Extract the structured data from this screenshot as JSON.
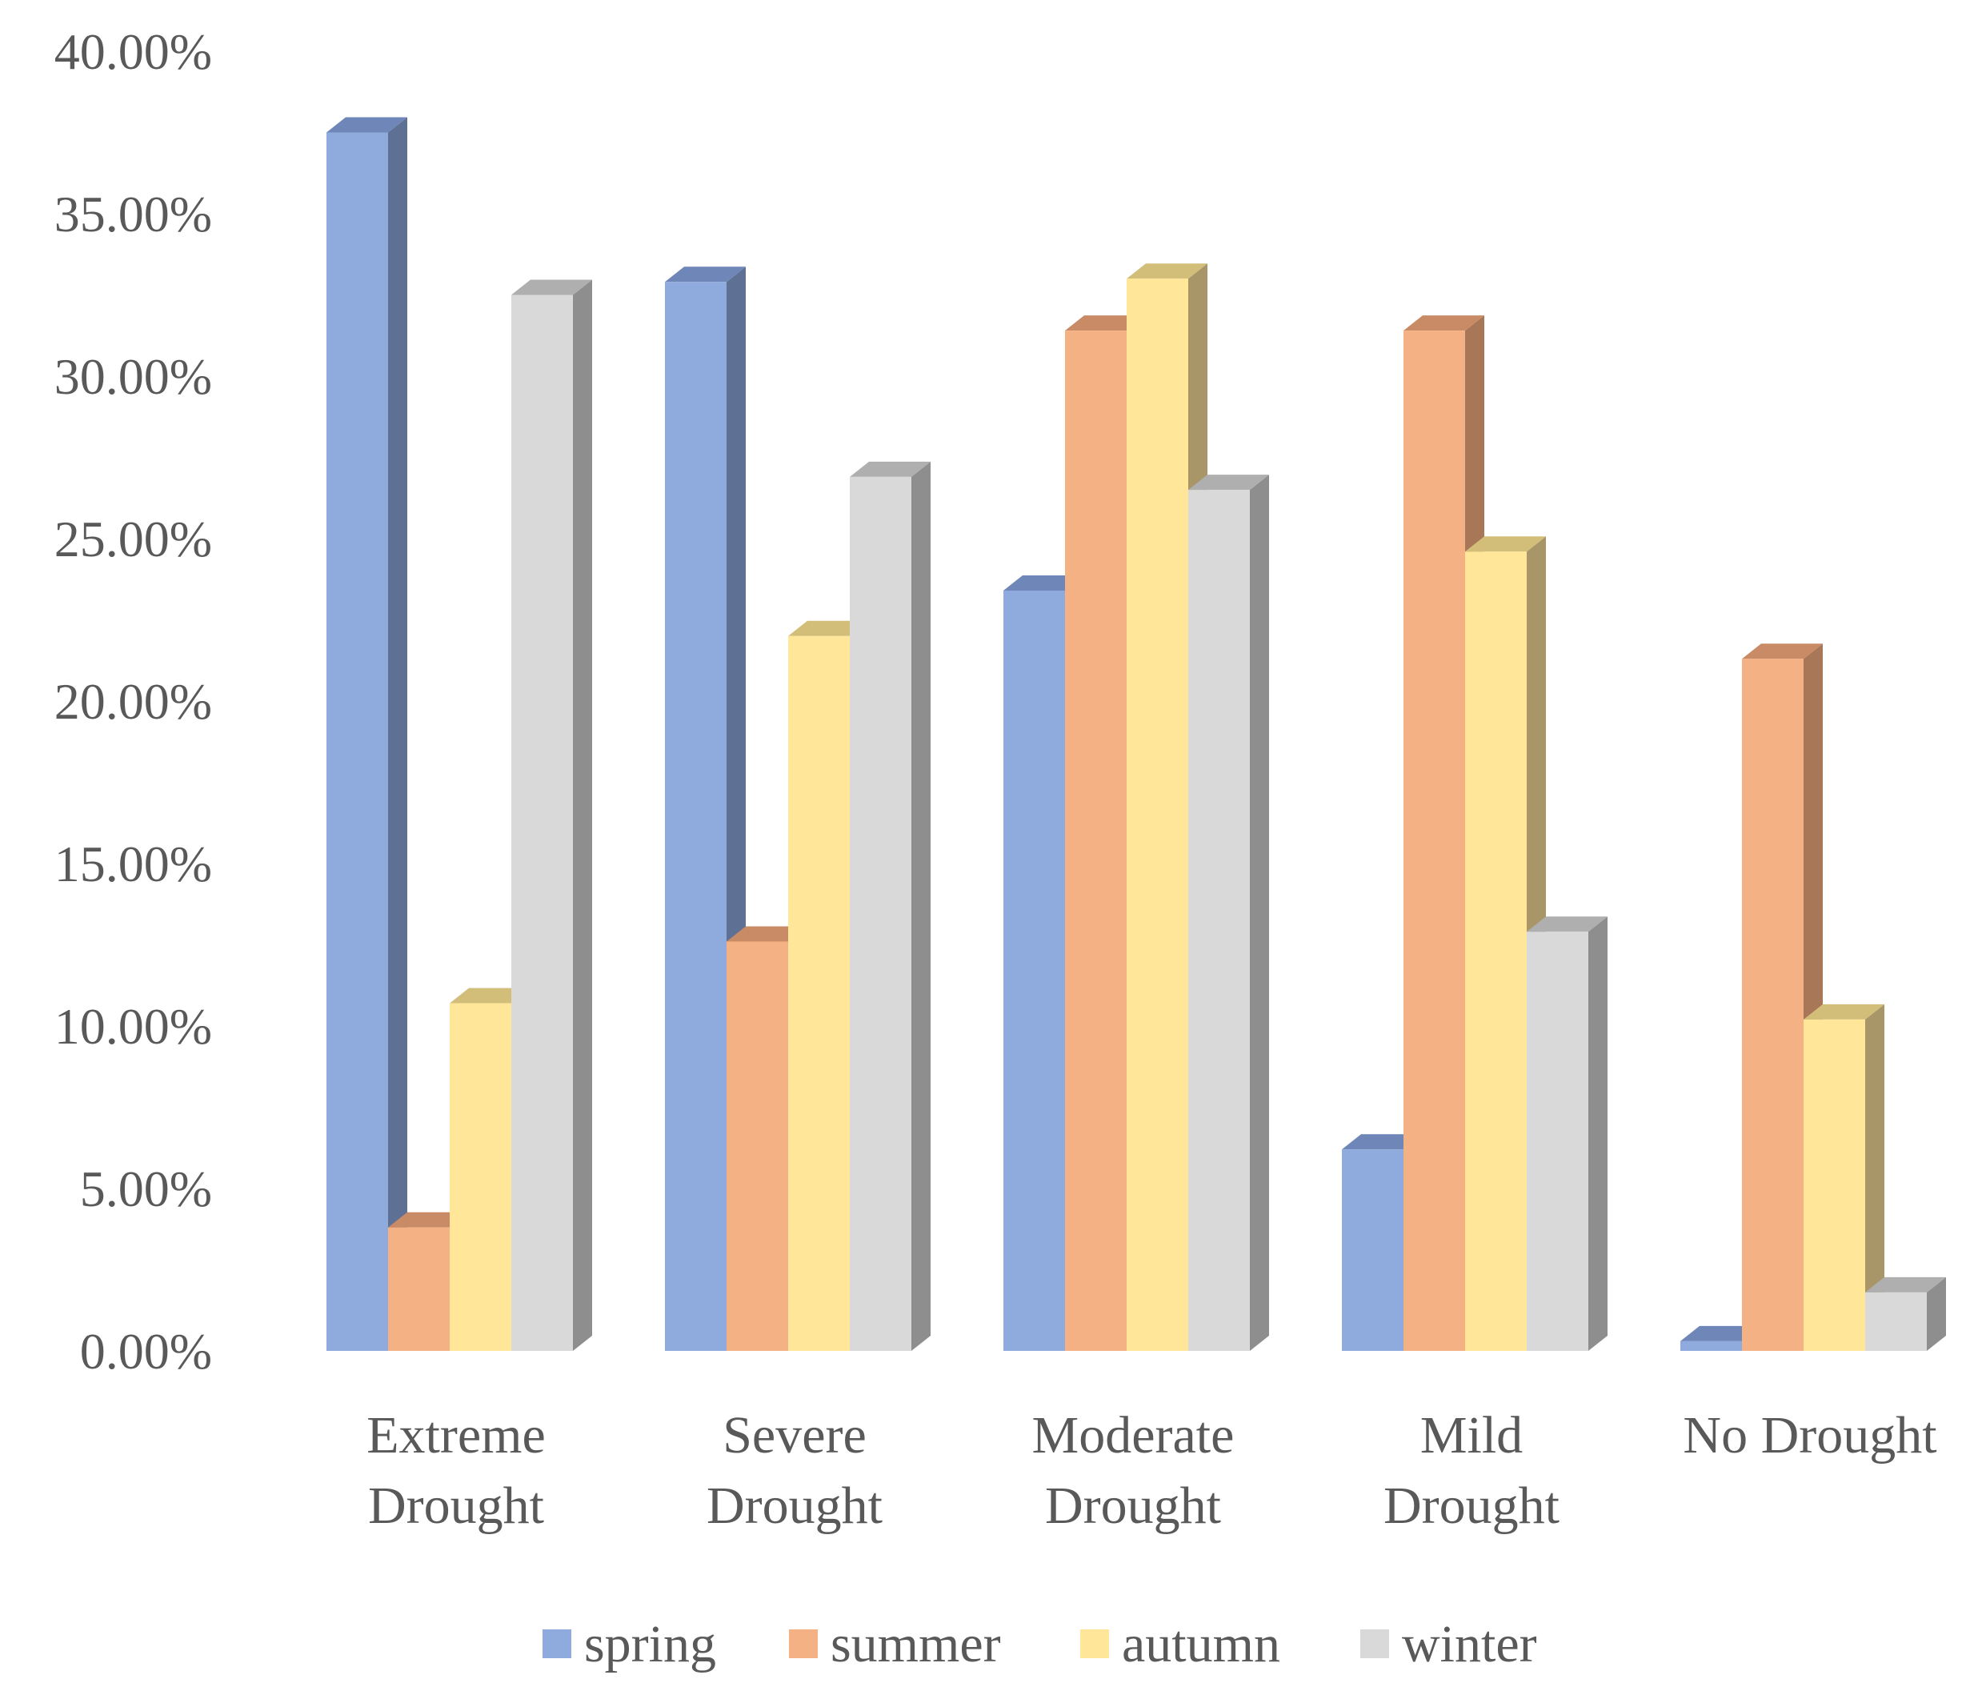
{
  "chart_data": {
    "type": "bar",
    "style": "3d-clustered-column",
    "title": "",
    "xlabel": "",
    "ylabel": "",
    "ylim": [
      0,
      40
    ],
    "y_ticks": [
      "0.00%",
      "5.00%",
      "10.00%",
      "15.00%",
      "20.00%",
      "25.00%",
      "30.00%",
      "35.00%",
      "40.00%"
    ],
    "y_tick_values": [
      0,
      5,
      10,
      15,
      20,
      25,
      30,
      35,
      40
    ],
    "categories": [
      [
        "Extreme",
        "Drought"
      ],
      [
        "Severe",
        "Drought"
      ],
      [
        "Moderate",
        "Drought"
      ],
      [
        "Mild",
        "Drought"
      ],
      [
        "No Drought"
      ]
    ],
    "series": [
      {
        "name": "spring",
        "color": "#8FAADC",
        "side": "#5E7093",
        "top": "#6F86B8",
        "values": [
          37.5,
          32.9,
          23.4,
          6.2,
          0.3
        ]
      },
      {
        "name": "summer",
        "color": "#F4B183",
        "side": "#A87758",
        "top": "#C98B66",
        "values": [
          3.8,
          12.6,
          31.4,
          31.4,
          21.3
        ]
      },
      {
        "name": "autumn",
        "color": "#FFE699",
        "side": "#A99668",
        "top": "#D2BE78",
        "values": [
          10.7,
          22.0,
          33.0,
          24.6,
          10.2
        ]
      },
      {
        "name": "winter",
        "color": "#D9D9D9",
        "side": "#8E8E8E",
        "top": "#AFAFAF",
        "values": [
          32.5,
          26.9,
          26.5,
          12.9,
          1.8
        ]
      }
    ],
    "legend_position": "bottom",
    "grid": false
  }
}
